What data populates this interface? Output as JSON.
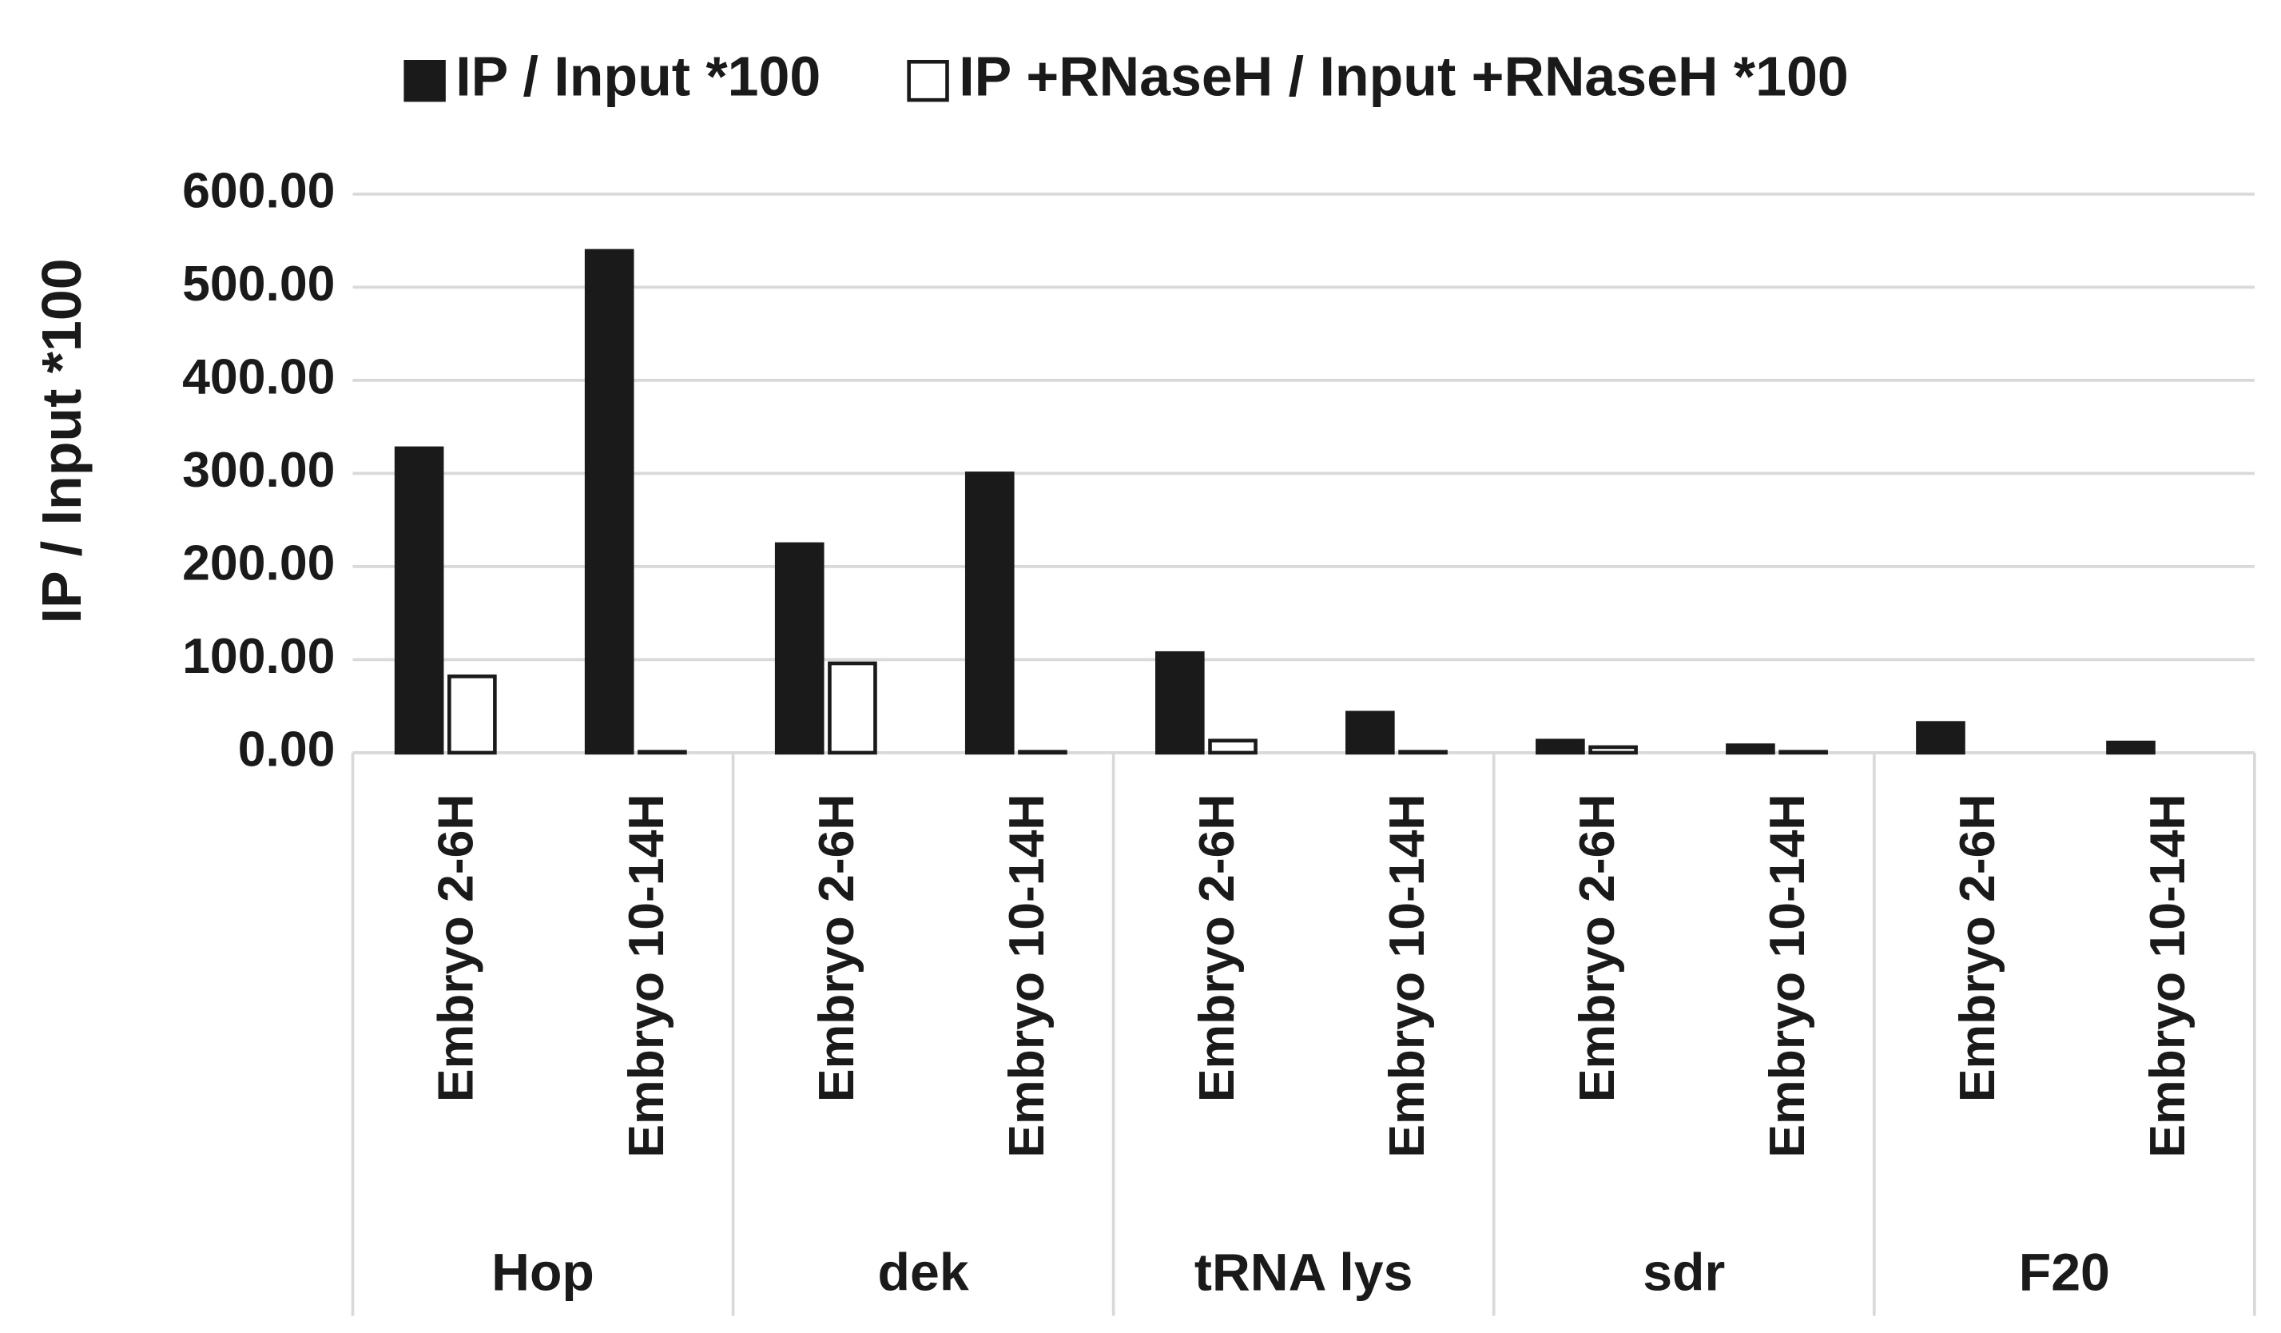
{
  "chart_data": {
    "type": "bar",
    "y_label": "IP / Input *100",
    "groups": [
      "Hop",
      "dek",
      "tRNA lys",
      "sdr",
      "F20"
    ],
    "categories": [
      "Embryo 2-6H",
      "Embryo 10-14H",
      "Embryo 2-6H",
      "Embryo 10-14H",
      "Embryo 2-6H",
      "Embryo 10-14H",
      "Embryo 2-6H",
      "Embryo 10-14H",
      "Embryo 2-6H",
      "Embryo 10-14H"
    ],
    "series": [
      {
        "name": "IP / Input *100",
        "color": "#1a1a1a",
        "values": [
          327,
          539,
          224,
          300,
          107,
          43,
          13,
          8,
          32,
          11
        ]
      },
      {
        "name": "IP +RNaseH / Input +RNaseH *100",
        "color": "#ffffff",
        "values": [
          82,
          1,
          96,
          1,
          13,
          1,
          6,
          1,
          0,
          0
        ]
      }
    ],
    "ylim": [
      0,
      600
    ],
    "yticks": [
      {
        "value": 0,
        "label": "0.00"
      },
      {
        "value": 100,
        "label": "100.00"
      },
      {
        "value": 200,
        "label": "200.00"
      },
      {
        "value": 300,
        "label": "300.00"
      },
      {
        "value": 400,
        "label": "400.00"
      },
      {
        "value": 500,
        "label": "500.00"
      },
      {
        "value": 600,
        "label": "600.00"
      }
    ],
    "grid": true,
    "legend": "top"
  }
}
